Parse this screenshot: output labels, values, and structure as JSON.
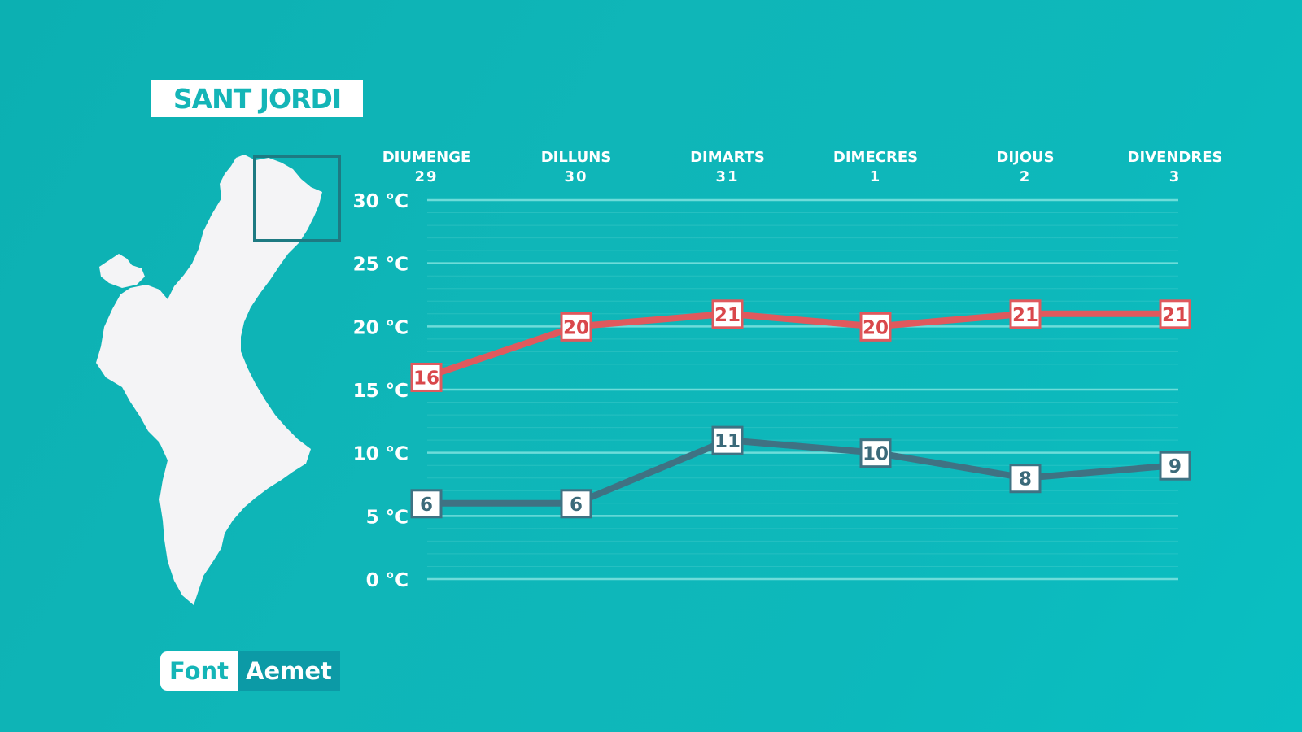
{
  "location": "SANT JORDI",
  "source": {
    "label": "Font",
    "value": "Aemet"
  },
  "colors": {
    "background": "#0fb5b8",
    "max_line": "#e0595d",
    "min_line": "#3f7283",
    "label_bg": "#ffffff",
    "grid": "#7fe3df",
    "map_fill": "#f4f4f6",
    "highlight_box": "#1d7a82"
  },
  "chart_data": {
    "type": "line",
    "categories": [
      {
        "day": "DIUMENGE",
        "date": "29"
      },
      {
        "day": "DILLUNS",
        "date": "30"
      },
      {
        "day": "DIMARTS",
        "date": "31"
      },
      {
        "day": "DIMECRES",
        "date": "1"
      },
      {
        "day": "DIJOUS",
        "date": "2"
      },
      {
        "day": "DIVENDRES",
        "date": "3"
      }
    ],
    "series": [
      {
        "key": "max",
        "values": [
          16,
          20,
          21,
          20,
          21,
          21
        ]
      },
      {
        "key": "min",
        "values": [
          6,
          6,
          11,
          10,
          8,
          9
        ]
      }
    ],
    "yticks": [
      "30 °C",
      "25 °C",
      "20 °C",
      "15 °C",
      "10 °C",
      "5 °C",
      "0 °C"
    ],
    "ytick_values": [
      30,
      25,
      20,
      15,
      10,
      5,
      0
    ],
    "ylim": [
      0,
      30
    ],
    "grid": true,
    "minor_grid_step": 1
  }
}
